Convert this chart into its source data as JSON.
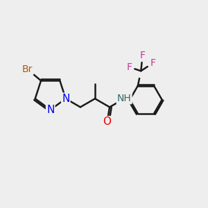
{
  "bg_color": "#eeeeee",
  "bond_color": "#1a1a1a",
  "bond_width": 1.8,
  "atom_colors": {
    "Br": "#b35900",
    "N": "#0000ee",
    "O": "#ee0000",
    "F": "#cc3399",
    "H": "#336666",
    "C": "#1a1a1a"
  },
  "font_size": 10,
  "fig_size": [
    3.0,
    3.0
  ],
  "dpi": 100
}
